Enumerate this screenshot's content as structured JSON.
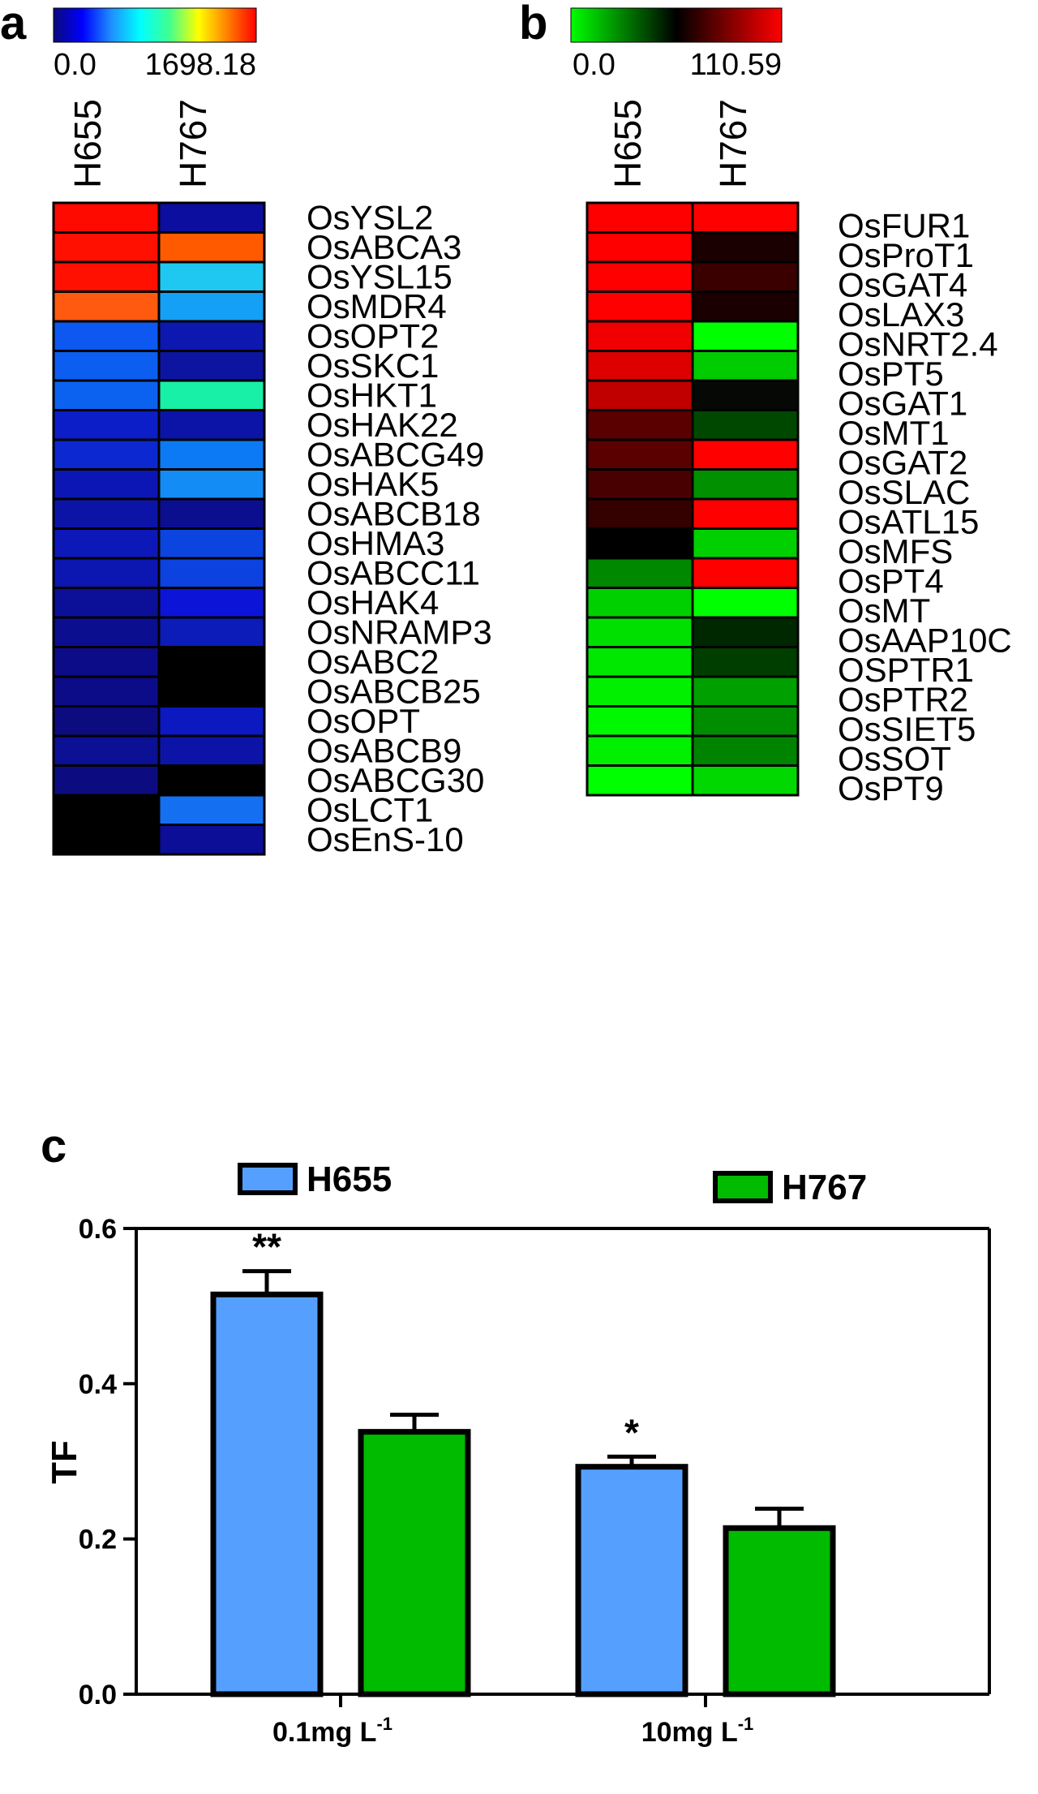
{
  "panels": {
    "a": {
      "letter": "a",
      "scale": {
        "min_label": "0.0",
        "max_label": "1698.18",
        "min": 0.0,
        "max": 1698.18,
        "colors": [
          "#0a0a7a",
          "#0000ff",
          "#1e90ff",
          "#00ffff",
          "#40ff90",
          "#ffff00",
          "#ff8000",
          "#ff0000"
        ]
      },
      "columns": [
        "H655",
        "H767"
      ],
      "genes": [
        "OsYSL2",
        "OsABCA3",
        "OsYSL15",
        "OsMDR4",
        "OsOPT2",
        "OsSKC1",
        "OsHKT1",
        "OsHAK22",
        "OsABCG49",
        "OsHAK5",
        "OsABCB18",
        "OsHMA3",
        "OsABCC11",
        "OsHAK4",
        "OsNRAMP3",
        "OsABC2",
        "OsABCB25",
        "OsOPT",
        "OsABCB9",
        "OsABCG30",
        "OsLCT1",
        "OsEnS-10"
      ],
      "cells": [
        [
          "#ff0a00",
          "#0c0ea0"
        ],
        [
          "#ff1000",
          "#ff5a00"
        ],
        [
          "#ff1000",
          "#1ec8f0"
        ],
        [
          "#ff5a10",
          "#14a0f5"
        ],
        [
          "#0c58f0",
          "#0c18b0"
        ],
        [
          "#0c5ef0",
          "#0c14a0"
        ],
        [
          "#0c62f0",
          "#18f0a8"
        ],
        [
          "#0c1ec8",
          "#0c14a8"
        ],
        [
          "#0c28d0",
          "#0c7af5"
        ],
        [
          "#0c16b4",
          "#148cf5"
        ],
        [
          "#0c14a8",
          "#0c0e90"
        ],
        [
          "#0c18b8",
          "#0c44e0"
        ],
        [
          "#0c16b0",
          "#0c42e0"
        ],
        [
          "#0c1098",
          "#0c14d8"
        ],
        [
          "#0c0e90",
          "#0c1cb8"
        ],
        [
          "#0c0c88",
          "#000000"
        ],
        [
          "#0c0c88",
          "#000000"
        ],
        [
          "#0c0c80",
          "#0c18c0"
        ],
        [
          "#0c1094",
          "#0c14a8"
        ],
        [
          "#0c0c80",
          "#000000"
        ],
        [
          "#000000",
          "#1470f0"
        ],
        [
          "#000000",
          "#0c0e98"
        ]
      ]
    },
    "b": {
      "letter": "b",
      "scale": {
        "min_label": "0.0",
        "max_label": "110.59",
        "min": 0.0,
        "max": 110.59,
        "colors": [
          "#00ff00",
          "#000000",
          "#ff0000"
        ]
      },
      "columns": [
        "H655",
        "H767"
      ],
      "genes": [
        "OsFUR1",
        "OsProT1",
        "OsGAT4",
        "OsLAX3",
        "OsNRT2.4",
        "OsPT5",
        "OsGAT1",
        "OsMT1",
        "OsGAT2",
        "OsSLAC",
        "OsATL15",
        "OsMFS",
        "OsPT4",
        "OsMT",
        "OsAAP10C",
        "OSPTR1",
        "OsPTR2",
        "OsSIET5",
        "OsSOT",
        "OsPT9"
      ],
      "cells": [
        [
          "#ff0000",
          "#ff0000"
        ],
        [
          "#ff0000",
          "#1a0000"
        ],
        [
          "#ff0000",
          "#3a0000"
        ],
        [
          "#ff0000",
          "#1a0000"
        ],
        [
          "#f00000",
          "#00ff00"
        ],
        [
          "#dc0000",
          "#00cc00"
        ],
        [
          "#c00000",
          "#050805"
        ],
        [
          "#5a0000",
          "#004800"
        ],
        [
          "#5a0000",
          "#ff0000"
        ],
        [
          "#480000",
          "#009000"
        ],
        [
          "#340000",
          "#ff0000"
        ],
        [
          "#000000",
          "#00d000"
        ],
        [
          "#008800",
          "#ff0000"
        ],
        [
          "#00d000",
          "#00ff00"
        ],
        [
          "#00e000",
          "#002800"
        ],
        [
          "#00e800",
          "#003e00"
        ],
        [
          "#00f000",
          "#00a000"
        ],
        [
          "#00f800",
          "#008e00"
        ],
        [
          "#00f000",
          "#008400"
        ],
        [
          "#00ff00",
          "#00d800"
        ]
      ]
    },
    "c": {
      "letter": "c"
    }
  },
  "chart_data": {
    "type": "bar",
    "categories": [
      "0.1mg L",
      "10mg L"
    ],
    "category_superscript": "-1",
    "series": [
      {
        "name": "H655",
        "values": [
          0.515,
          0.293
        ],
        "errors": [
          0.03,
          0.013
        ],
        "significance": [
          "**",
          "*"
        ],
        "color": "#55a0ff"
      },
      {
        "name": "H767",
        "values": [
          0.338,
          0.214
        ],
        "errors": [
          0.022,
          0.025
        ],
        "significance": [
          "",
          ""
        ],
        "color": "#00bb00"
      }
    ],
    "xlabel": "",
    "ylabel": "TF",
    "ylim": [
      0.0,
      0.6
    ],
    "yticks": [
      0.0,
      0.2,
      0.4,
      0.6
    ],
    "ytick_labels": [
      "0.0",
      "0.2",
      "0.4",
      "0.6"
    ],
    "legend_placement": "top",
    "grid": false
  }
}
